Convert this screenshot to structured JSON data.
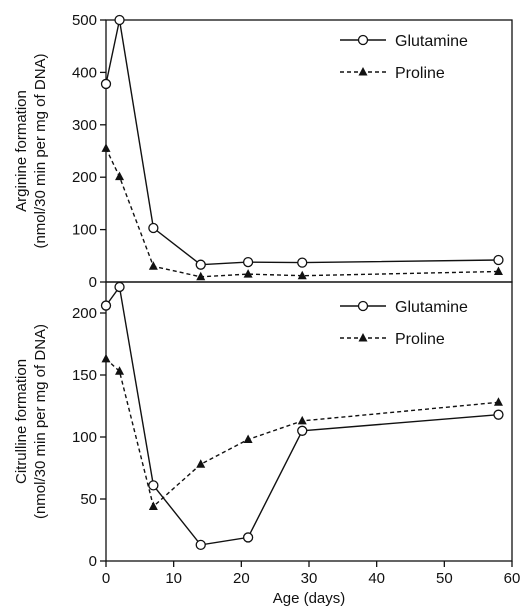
{
  "chart_data": [
    {
      "type": "line",
      "title": "",
      "xlabel": "",
      "ylabel": [
        "Arginine formation",
        "(nmol/30 min per mg of DNA)"
      ],
      "xlim": [
        0,
        60
      ],
      "ylim": [
        0,
        500
      ],
      "xticks": [],
      "yticks": [
        0,
        100,
        200,
        300,
        400,
        500
      ],
      "grid": false,
      "legend_position": "top-right",
      "series": [
        {
          "name": "Glutamine",
          "style": "solid",
          "marker": "open-circle",
          "x": [
            0,
            2,
            7,
            14,
            21,
            29,
            58
          ],
          "y": [
            378,
            500,
            103,
            33,
            38,
            37,
            42
          ]
        },
        {
          "name": "Proline",
          "style": "dashed",
          "marker": "filled-triangle",
          "x": [
            0,
            2,
            7,
            14,
            21,
            29,
            58
          ],
          "y": [
            255,
            201,
            30,
            10,
            15,
            12,
            20
          ]
        }
      ]
    },
    {
      "type": "line",
      "title": "",
      "xlabel": "Age (days)",
      "ylabel": [
        "Citrulline formation",
        "(nmol/30 min per mg of DNA)"
      ],
      "xlim": [
        0,
        60
      ],
      "ylim": [
        0,
        225
      ],
      "xticks": [
        0,
        10,
        20,
        30,
        40,
        50,
        60
      ],
      "yticks": [
        0,
        50,
        100,
        150,
        200
      ],
      "grid": false,
      "legend_position": "top-right",
      "series": [
        {
          "name": "Glutamine",
          "style": "solid",
          "marker": "open-circle",
          "x": [
            0,
            2,
            7,
            14,
            21,
            29,
            58
          ],
          "y": [
            206,
            221,
            61,
            13,
            19,
            105,
            118
          ]
        },
        {
          "name": "Proline",
          "style": "dashed",
          "marker": "filled-triangle",
          "x": [
            0,
            2,
            7,
            14,
            21,
            29,
            58
          ],
          "y": [
            163,
            153,
            44,
            78,
            98,
            113,
            128
          ]
        }
      ]
    }
  ]
}
